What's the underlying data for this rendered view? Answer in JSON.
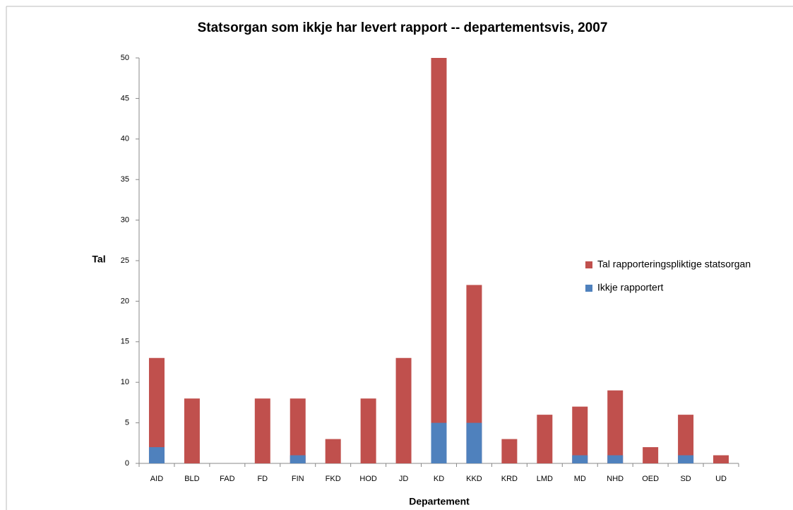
{
  "chart_data": {
    "type": "bar",
    "title": "Statsorgan som ikkje har levert rapport -- departementsvis, 2007",
    "x_label": "Departement",
    "y_label": "Tal",
    "categories": [
      "AID",
      "BLD",
      "FAD",
      "FD",
      "FIN",
      "FKD",
      "HOD",
      "JD",
      "KD",
      "KKD",
      "KRD",
      "LMD",
      "MD",
      "NHD",
      "OED",
      "SD",
      "UD"
    ],
    "series": [
      {
        "name": "Tal rapporteringspliktige statsorgan",
        "color": "#c0504d",
        "values": [
          13,
          8,
          0,
          8,
          8,
          3,
          8,
          13,
          50,
          22,
          3,
          6,
          7,
          9,
          2,
          6,
          1
        ]
      },
      {
        "name": "Ikkje rapportert",
        "color": "#4f81bd",
        "values": [
          2,
          0,
          0,
          0,
          1,
          0,
          0,
          0,
          5,
          5,
          0,
          0,
          1,
          1,
          0,
          1,
          0
        ]
      }
    ],
    "ylim": [
      0,
      50
    ],
    "yticks": [
      0,
      5,
      10,
      15,
      20,
      25,
      30,
      35,
      40,
      45,
      50
    ],
    "grid": false,
    "legend": "right"
  }
}
